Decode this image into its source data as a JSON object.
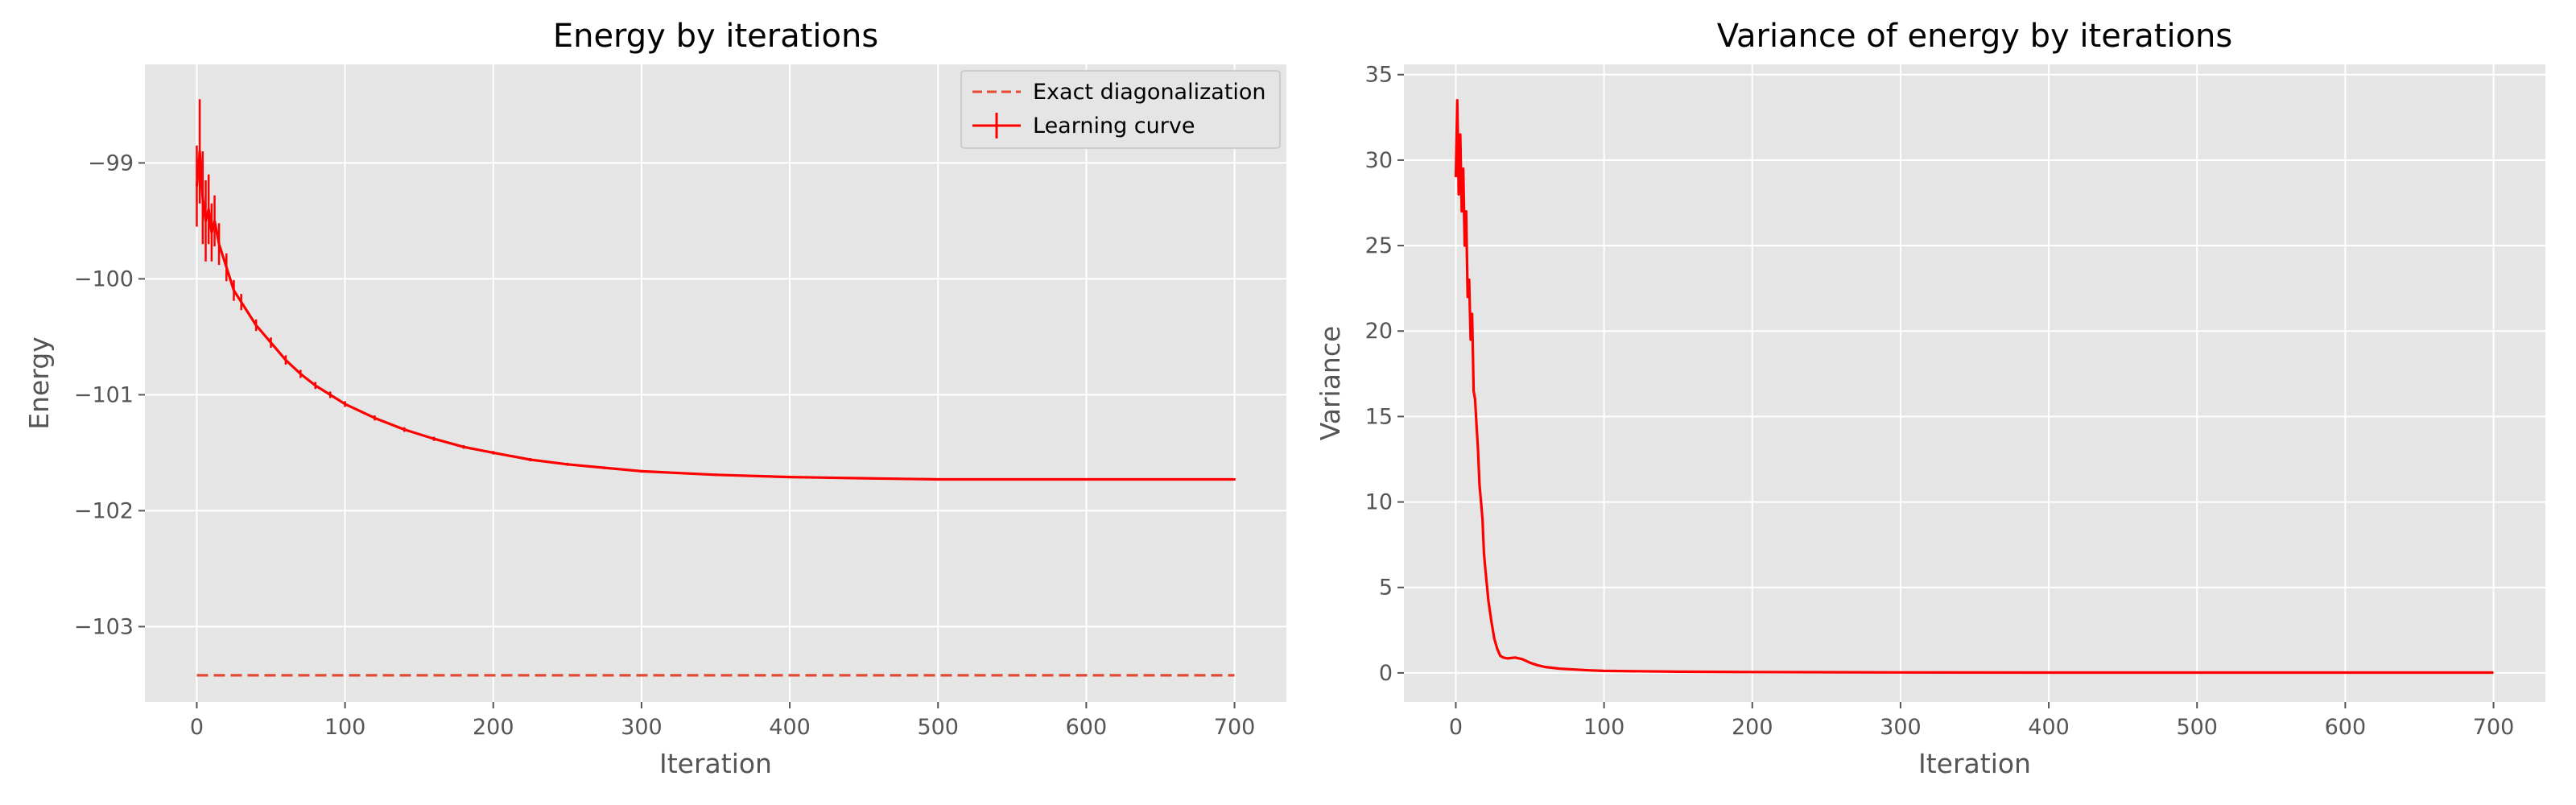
{
  "chart_data": [
    {
      "type": "line",
      "title": "Energy by iterations",
      "xlabel": "Iteration",
      "ylabel": "Energy",
      "xlim": [
        -35,
        735
      ],
      "ylim": [
        -103.65,
        -98.15
      ],
      "xticks": [
        0,
        100,
        200,
        300,
        400,
        500,
        600,
        700
      ],
      "yticks": [
        -103,
        -102,
        -101,
        -100,
        -99
      ],
      "grid": true,
      "legend": "top-right",
      "legend_entries": [
        "Exact diagonalization",
        "Learning curve"
      ],
      "series": [
        {
          "name": "Exact diagonalization",
          "style": "dashed",
          "color": "#e24a33",
          "x": [
            0,
            700
          ],
          "y": [
            -103.42,
            -103.42
          ]
        },
        {
          "name": "Learning curve",
          "style": "solid-errorbar",
          "color": "#ff0000",
          "x": [
            0,
            2,
            4,
            6,
            8,
            10,
            12,
            15,
            20,
            25,
            30,
            40,
            50,
            60,
            70,
            80,
            90,
            100,
            120,
            140,
            160,
            180,
            200,
            225,
            250,
            275,
            300,
            350,
            400,
            450,
            500,
            550,
            600,
            650,
            700
          ],
          "y": [
            -99.2,
            -98.9,
            -99.3,
            -99.5,
            -99.4,
            -99.6,
            -99.5,
            -99.7,
            -99.9,
            -100.1,
            -100.2,
            -100.4,
            -100.55,
            -100.7,
            -100.82,
            -100.92,
            -101.0,
            -101.08,
            -101.2,
            -101.3,
            -101.38,
            -101.45,
            -101.5,
            -101.56,
            -101.6,
            -101.63,
            -101.66,
            -101.69,
            -101.71,
            -101.72,
            -101.73,
            -101.73,
            -101.73,
            -101.73,
            -101.73
          ],
          "error": [
            0.35,
            0.45,
            0.4,
            0.35,
            0.3,
            0.25,
            0.22,
            0.18,
            0.12,
            0.09,
            0.07,
            0.05,
            0.045,
            0.04,
            0.035,
            0.03,
            0.028,
            0.025,
            0.022,
            0.02,
            0.018,
            0.016,
            0.015,
            0.014,
            0.013,
            0.012,
            0.012,
            0.011,
            0.011,
            0.01,
            0.01,
            0.01,
            0.01,
            0.01,
            0.01
          ]
        }
      ]
    },
    {
      "type": "line",
      "title": "Variance of energy by iterations",
      "xlabel": "Iteration",
      "ylabel": "Variance",
      "xlim": [
        -35,
        735
      ],
      "ylim": [
        -1.7,
        35.6
      ],
      "xticks": [
        0,
        100,
        200,
        300,
        400,
        500,
        600,
        700
      ],
      "yticks": [
        0,
        5,
        10,
        15,
        20,
        25,
        30,
        35
      ],
      "grid": true,
      "series": [
        {
          "color": "#ff0000",
          "x": [
            0,
            1,
            2,
            3,
            4,
            5,
            6,
            7,
            8,
            9,
            10,
            11,
            12,
            13,
            14,
            15,
            16,
            17,
            18,
            19,
            20,
            22,
            24,
            26,
            28,
            30,
            32,
            35,
            40,
            45,
            50,
            55,
            60,
            70,
            80,
            90,
            100,
            150,
            200,
            300,
            400,
            500,
            600,
            700
          ],
          "y": [
            29.0,
            33.5,
            28.0,
            31.5,
            27.0,
            29.5,
            25.0,
            27.0,
            22.0,
            23.0,
            19.5,
            21.0,
            16.5,
            16.0,
            14.5,
            13.0,
            11.0,
            10.0,
            9.0,
            7.0,
            6.0,
            4.2,
            3.0,
            2.0,
            1.4,
            1.0,
            0.9,
            0.85,
            0.9,
            0.8,
            0.6,
            0.45,
            0.35,
            0.25,
            0.2,
            0.15,
            0.12,
            0.07,
            0.05,
            0.03,
            0.02,
            0.02,
            0.02,
            0.02
          ]
        }
      ]
    }
  ]
}
